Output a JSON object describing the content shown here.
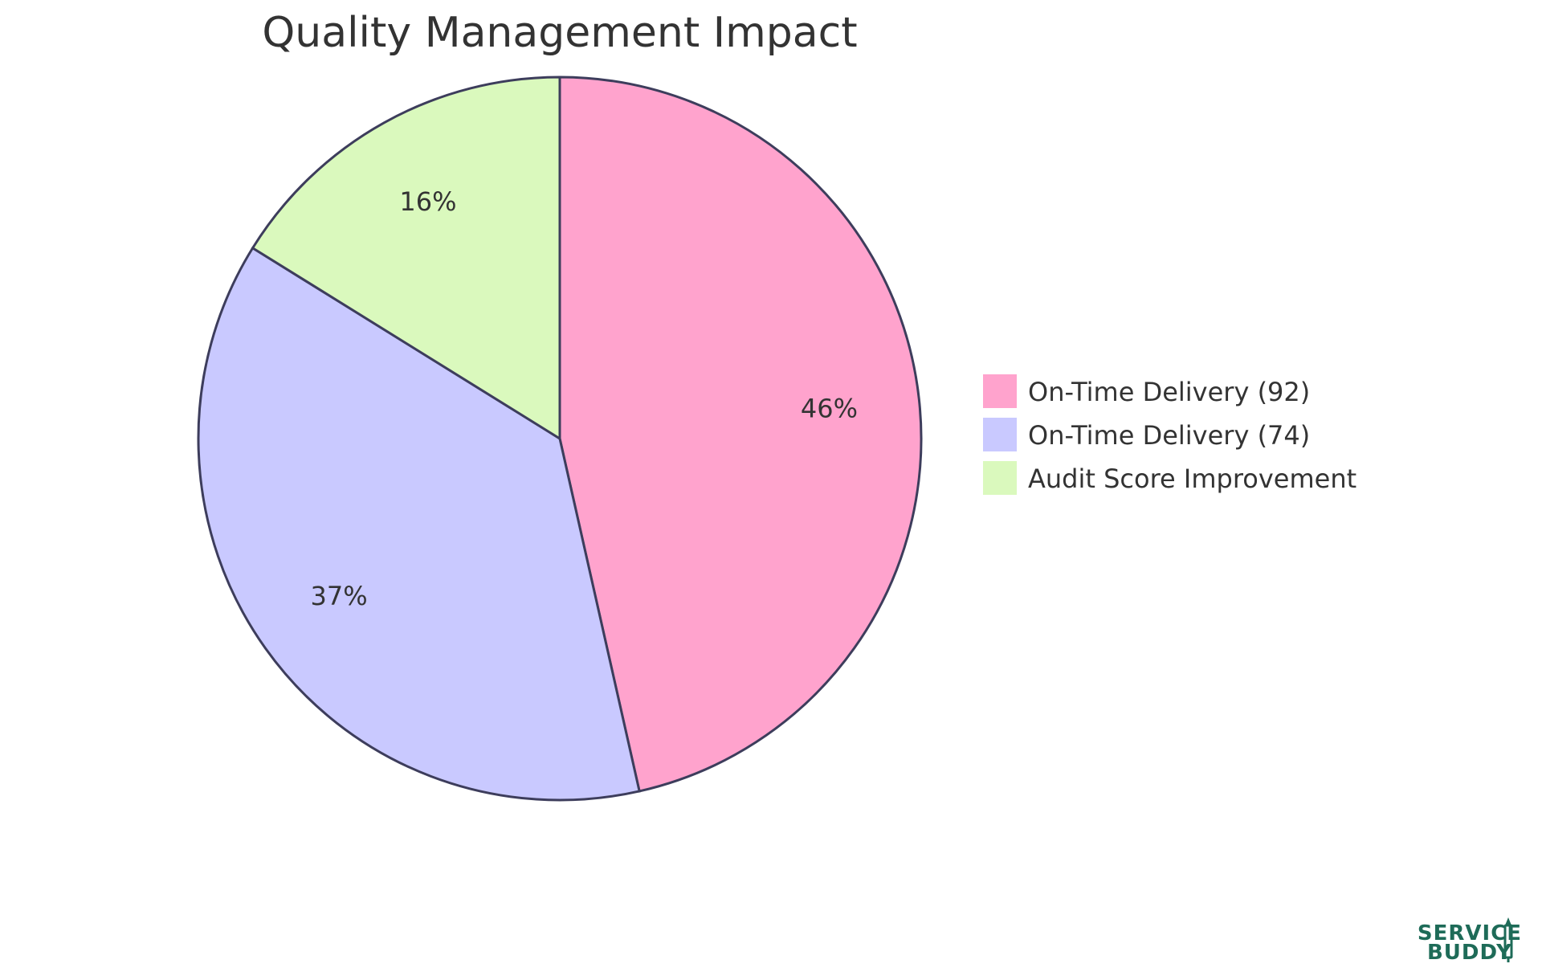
{
  "chart_data": {
    "type": "pie",
    "title": "Quality Management Impact",
    "series": [
      {
        "name": "On-Time Delivery (92)",
        "value": 92,
        "percent_label": "46%",
        "color": "#ffa3cd"
      },
      {
        "name": "On-Time Delivery (74)",
        "value": 74,
        "percent_label": "37%",
        "color": "#c9c9ff"
      },
      {
        "name": "Audit Score Improvement",
        "value": 32,
        "percent_label": "16%",
        "color": "#daf9bd"
      }
    ],
    "start_angle": "12 o'clock",
    "direction": "clockwise",
    "slice_stroke_color": "#3d3d5c",
    "legend_position": "right"
  },
  "logo": {
    "line1": "SERVICE",
    "line2": "BUDDY",
    "color": "#1e6b58"
  }
}
